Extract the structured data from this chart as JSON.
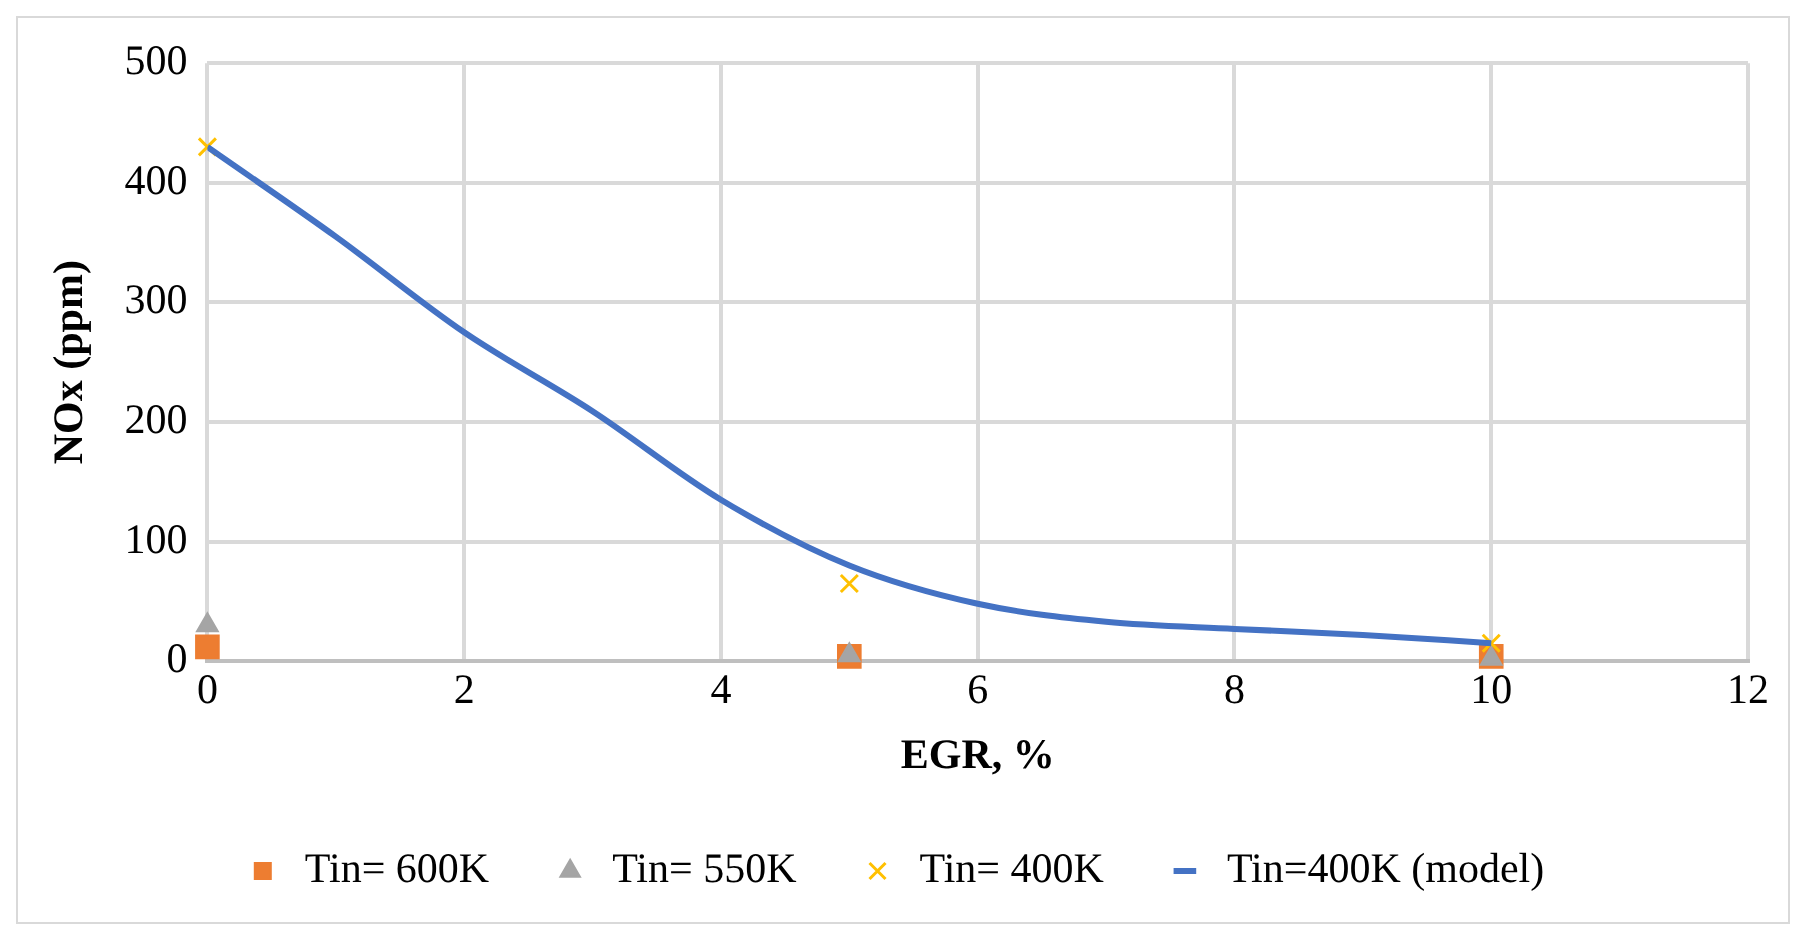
{
  "chart_data": {
    "type": "scatter",
    "xlabel": "EGR, %",
    "ylabel": "NOx (ppm)",
    "xlim": [
      0,
      12
    ],
    "xticks": [
      0,
      2,
      4,
      6,
      8,
      10,
      12
    ],
    "ylim": [
      0,
      500
    ],
    "yticks": [
      0,
      100,
      200,
      300,
      400,
      500
    ],
    "grid": true,
    "legend": "bottom",
    "series": [
      {
        "name": "Tin= 600K",
        "color": "#ed7d31",
        "marker": "square",
        "x": [
          0,
          5,
          10
        ],
        "values": [
          12,
          4,
          4
        ]
      },
      {
        "name": "Tin= 550K",
        "color": "#a5a5a5",
        "marker": "triangle",
        "x": [
          0,
          5,
          10
        ],
        "values": [
          30,
          5,
          2
        ]
      },
      {
        "name": "Tin= 400K",
        "color": "#ffc000",
        "marker": "cross",
        "x": [
          0,
          5,
          10
        ],
        "values": [
          430,
          65,
          15
        ]
      },
      {
        "name": "Tin=400K (model)",
        "type": "line",
        "color": "#4472c4",
        "marker": "none",
        "line_style": "solid",
        "x": [
          0,
          1,
          2,
          3,
          4,
          5,
          6,
          7,
          8,
          9,
          10
        ],
        "values": [
          430,
          355,
          275,
          209,
          135,
          80,
          48,
          33,
          27,
          22,
          15
        ]
      }
    ]
  }
}
